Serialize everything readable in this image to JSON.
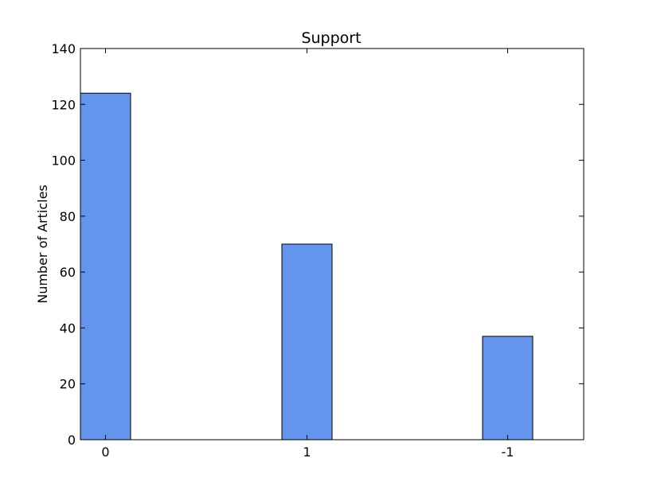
{
  "chart_data": {
    "type": "bar",
    "title": "Support",
    "xlabel": "",
    "ylabel": "Number of Articles",
    "categories": [
      "0",
      "1",
      "-1"
    ],
    "values": [
      124,
      70,
      37
    ],
    "ylim": [
      0,
      140
    ],
    "yticks": [
      0,
      20,
      40,
      60,
      80,
      100,
      120,
      140
    ],
    "grid": false,
    "legend": "none",
    "bar_color": "#6495ED",
    "edge_color": "#000000"
  }
}
